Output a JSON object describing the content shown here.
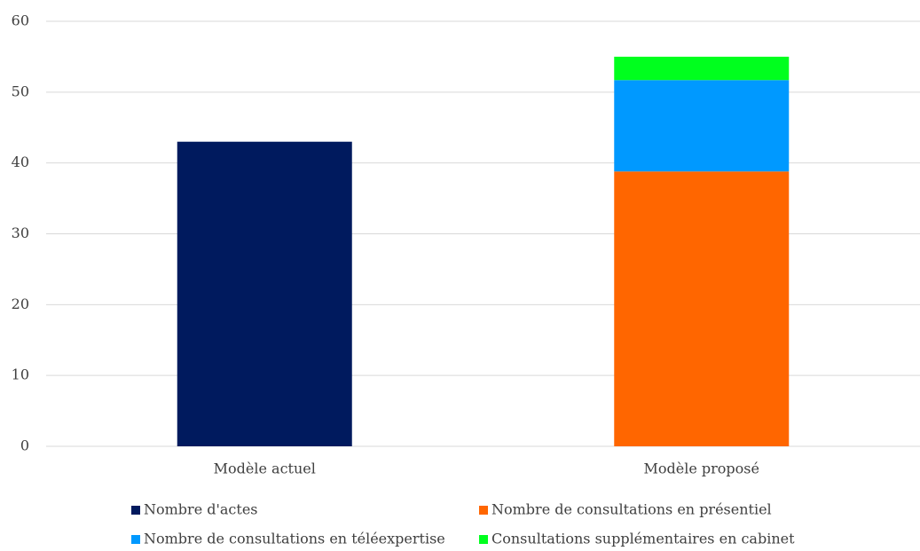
{
  "chart_data": {
    "type": "stacked-bar",
    "categories": [
      "Modèle actuel",
      "Modèle proposé"
    ],
    "series": [
      {
        "name": "Nombre d'actes",
        "color": "#001a5e",
        "values": [
          43,
          null
        ]
      },
      {
        "name": "Nombre de consultations en présentiel",
        "color": "#ff6600",
        "values": [
          null,
          38.8
        ]
      },
      {
        "name": "Nombre de consultations en téléexpertise",
        "color": "#0099ff",
        "values": [
          null,
          12.9
        ]
      },
      {
        "name": "Consultations supplémentaires en cabinet",
        "color": "#00ff1e",
        "values": [
          null,
          3.3
        ]
      }
    ],
    "ylim": [
      0,
      60
    ],
    "yticks": [
      0,
      10,
      20,
      30,
      40,
      50,
      60
    ],
    "grid": true
  }
}
